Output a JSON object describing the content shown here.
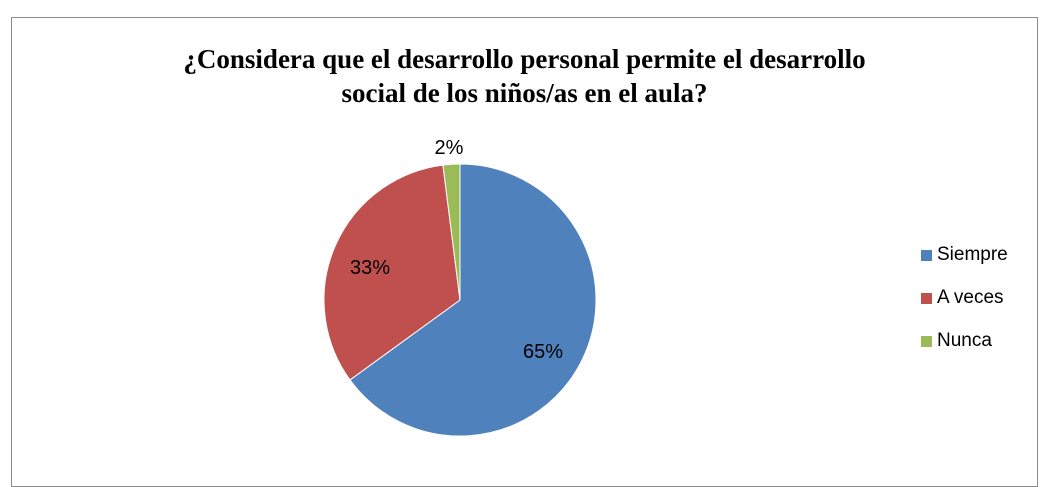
{
  "chart_data": {
    "type": "pie",
    "title_lines": [
      "¿Considera que el desarrollo personal permite el desarrollo",
      "social de los niños/as en el aula?"
    ],
    "categories": [
      "Siempre",
      "A veces",
      "Nunca"
    ],
    "values": [
      65,
      33,
      2
    ],
    "data_labels": [
      "65%",
      "33%",
      "2%"
    ],
    "colors": [
      "#4f81bd",
      "#c0504d",
      "#9bbb59"
    ],
    "legend_position": "right"
  }
}
